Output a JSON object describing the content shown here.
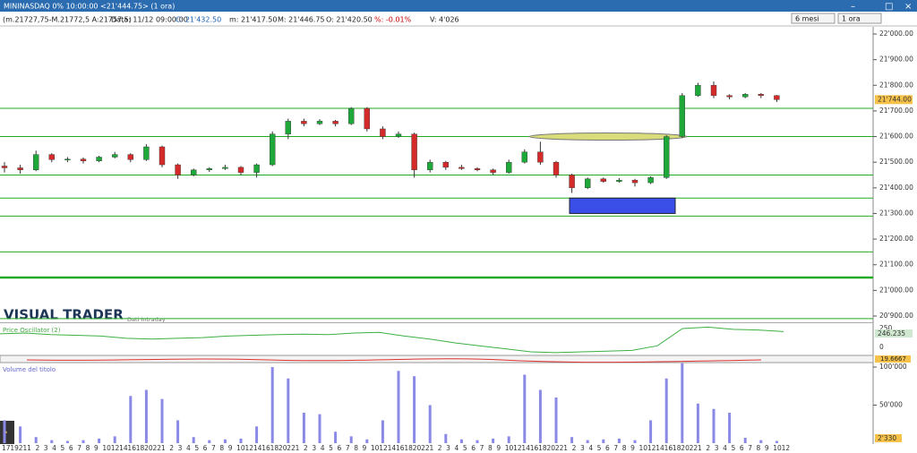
{
  "window": {
    "title": "MININASDAQ 0% 10:00:00  <21'444.75> (1 ora)",
    "period": "6 mesi",
    "timeframe": "1 ora"
  },
  "info": {
    "range": "(m.21727,75-M.21772,5 A:21757,5)",
    "date": "Data: 11/12 09:00:00",
    "close": "C: 21'432.50",
    "min": "m: 21'417.50",
    "max": "M: 21'446.75",
    "open": "O: 21'420.50",
    "change": "%: -0.01%",
    "volume": "V: 4'026"
  },
  "chart_data": {
    "type": "candlestick",
    "watermark": "VISUAL TRADER",
    "subtitle": "Dati Intraday",
    "last_price_label": "21'744.00",
    "ylim": [
      20880,
      22010
    ],
    "yticks": [
      {
        "value": 22000,
        "label": "22'000.00"
      },
      {
        "value": 21900,
        "label": "21'900.00"
      },
      {
        "value": 21800,
        "label": "21'800.00"
      },
      {
        "value": 21700,
        "label": "21'700.00"
      },
      {
        "value": 21600,
        "label": "21'600.00"
      },
      {
        "value": 21500,
        "label": "21'500.00"
      },
      {
        "value": 21400,
        "label": "21'400.00"
      },
      {
        "value": 21300,
        "label": "21'300.00"
      },
      {
        "value": 21200,
        "label": "21'200.00"
      },
      {
        "value": 21100,
        "label": "21'100.00"
      },
      {
        "value": 21000,
        "label": "21'000.00"
      },
      {
        "value": 20900,
        "label": "20'900.00"
      }
    ],
    "levels": [
      21710,
      21600,
      21450,
      21360,
      21290,
      21150,
      21050,
      20890
    ],
    "zone": [
      21300,
      21360
    ],
    "candles": [
      [
        21485,
        21500,
        21460,
        21478
      ],
      [
        21478,
        21490,
        21455,
        21470
      ],
      [
        21470,
        21545,
        21465,
        21530
      ],
      [
        21530,
        21535,
        21500,
        21510
      ],
      [
        21510,
        21520,
        21500,
        21512
      ],
      [
        21512,
        21518,
        21495,
        21505
      ],
      [
        21505,
        21525,
        21500,
        21520
      ],
      [
        21520,
        21540,
        21515,
        21530
      ],
      [
        21530,
        21535,
        21500,
        21510
      ],
      [
        21510,
        21570,
        21505,
        21560
      ],
      [
        21560,
        21565,
        21480,
        21490
      ],
      [
        21490,
        21495,
        21435,
        21450
      ],
      [
        21450,
        21475,
        21445,
        21470
      ],
      [
        21470,
        21480,
        21462,
        21475
      ],
      [
        21475,
        21490,
        21470,
        21480
      ],
      [
        21480,
        21485,
        21450,
        21460
      ],
      [
        21460,
        21495,
        21440,
        21490
      ],
      [
        21490,
        21620,
        21485,
        21610
      ],
      [
        21610,
        21670,
        21590,
        21660
      ],
      [
        21660,
        21670,
        21640,
        21650
      ],
      [
        21650,
        21668,
        21645,
        21660
      ],
      [
        21660,
        21665,
        21640,
        21650
      ],
      [
        21650,
        21715,
        21645,
        21710
      ],
      [
        21710,
        21715,
        21620,
        21630
      ],
      [
        21630,
        21640,
        21590,
        21600
      ],
      [
        21600,
        21620,
        21595,
        21610
      ],
      [
        21610,
        21615,
        21440,
        21470
      ],
      [
        21470,
        21510,
        21460,
        21500
      ],
      [
        21500,
        21505,
        21470,
        21480
      ],
      [
        21480,
        21490,
        21470,
        21475
      ],
      [
        21475,
        21480,
        21465,
        21470
      ],
      [
        21470,
        21475,
        21450,
        21460
      ],
      [
        21460,
        21510,
        21455,
        21500
      ],
      [
        21500,
        21550,
        21495,
        21540
      ],
      [
        21540,
        21580,
        21490,
        21500
      ],
      [
        21500,
        21505,
        21440,
        21450
      ],
      [
        21450,
        21455,
        21380,
        21400
      ],
      [
        21400,
        21440,
        21395,
        21435
      ],
      [
        21435,
        21440,
        21420,
        21425
      ],
      [
        21425,
        21438,
        21420,
        21430
      ],
      [
        21430,
        21435,
        21405,
        21420
      ],
      [
        21420,
        21445,
        21415,
        21440
      ],
      [
        21440,
        21605,
        21435,
        21600
      ],
      [
        21600,
        21770,
        21595,
        21760
      ],
      [
        21760,
        21810,
        21755,
        21800
      ],
      [
        21800,
        21815,
        21750,
        21760
      ],
      [
        21760,
        21765,
        21745,
        21755
      ],
      [
        21755,
        21770,
        21750,
        21765
      ],
      [
        21765,
        21770,
        21750,
        21760
      ],
      [
        21760,
        21762,
        21735,
        21744
      ]
    ],
    "oscillator": {
      "name": "Price Oscillator (2)",
      "value_label": "246.235",
      "ylim": [
        -80,
        290
      ],
      "yticks": [
        250,
        0
      ],
      "values": [
        180,
        190,
        170,
        160,
        150,
        120,
        110,
        120,
        130,
        150,
        160,
        170,
        175,
        170,
        190,
        200,
        150,
        110,
        60,
        20,
        -20,
        -60,
        -70,
        -60,
        -50,
        -40,
        20,
        250,
        270,
        240,
        230,
        210
      ]
    },
    "oscillator2_label": "19.6667",
    "volume": {
      "name": "Volume del titolo",
      "value_label": "2'330",
      "ylim": [
        0,
        110000
      ],
      "yticks": [
        {
          "value": 100000,
          "label": "100'000"
        },
        {
          "value": 50000,
          "label": "50'000"
        }
      ],
      "values": [
        30000,
        22000,
        8000,
        4000,
        3000,
        4000,
        6000,
        9000,
        62000,
        70000,
        58000,
        30000,
        8000,
        4000,
        5000,
        6000,
        22000,
        100000,
        85000,
        40000,
        38000,
        15000,
        9000,
        5000,
        30000,
        95000,
        88000,
        50000,
        12000,
        5000,
        4000,
        6000,
        9000,
        90000,
        70000,
        60000,
        8000,
        4000,
        5000,
        6000,
        4000,
        30000,
        85000,
        105000,
        52000,
        45000,
        40000,
        7000,
        4000,
        3000
      ]
    },
    "x_labels": [
      "17",
      "19",
      "21",
      "1",
      "2",
      "3",
      "4",
      "5",
      "6",
      "7",
      "8",
      "9",
      "10",
      "12",
      "14",
      "16",
      "18",
      "20",
      "22",
      "1",
      "2",
      "3",
      "4",
      "5",
      "6",
      "7",
      "8",
      "9",
      "10",
      "12",
      "14",
      "16",
      "18",
      "20",
      "22",
      "1",
      "2",
      "3",
      "4",
      "5",
      "6",
      "7",
      "8",
      "9",
      "10",
      "12",
      "14",
      "16",
      "18",
      "20",
      "22",
      "1",
      "2",
      "3",
      "4",
      "5",
      "6",
      "7",
      "8",
      "9",
      "10",
      "12",
      "14",
      "16",
      "18",
      "20",
      "22",
      "1",
      "2",
      "3",
      "4",
      "5",
      "6",
      "7",
      "8",
      "9",
      "10",
      "12",
      "14",
      "16",
      "18",
      "20",
      "22",
      "1",
      "2",
      "3",
      "4",
      "5",
      "6",
      "7",
      "8",
      "9",
      "10",
      "12"
    ]
  }
}
